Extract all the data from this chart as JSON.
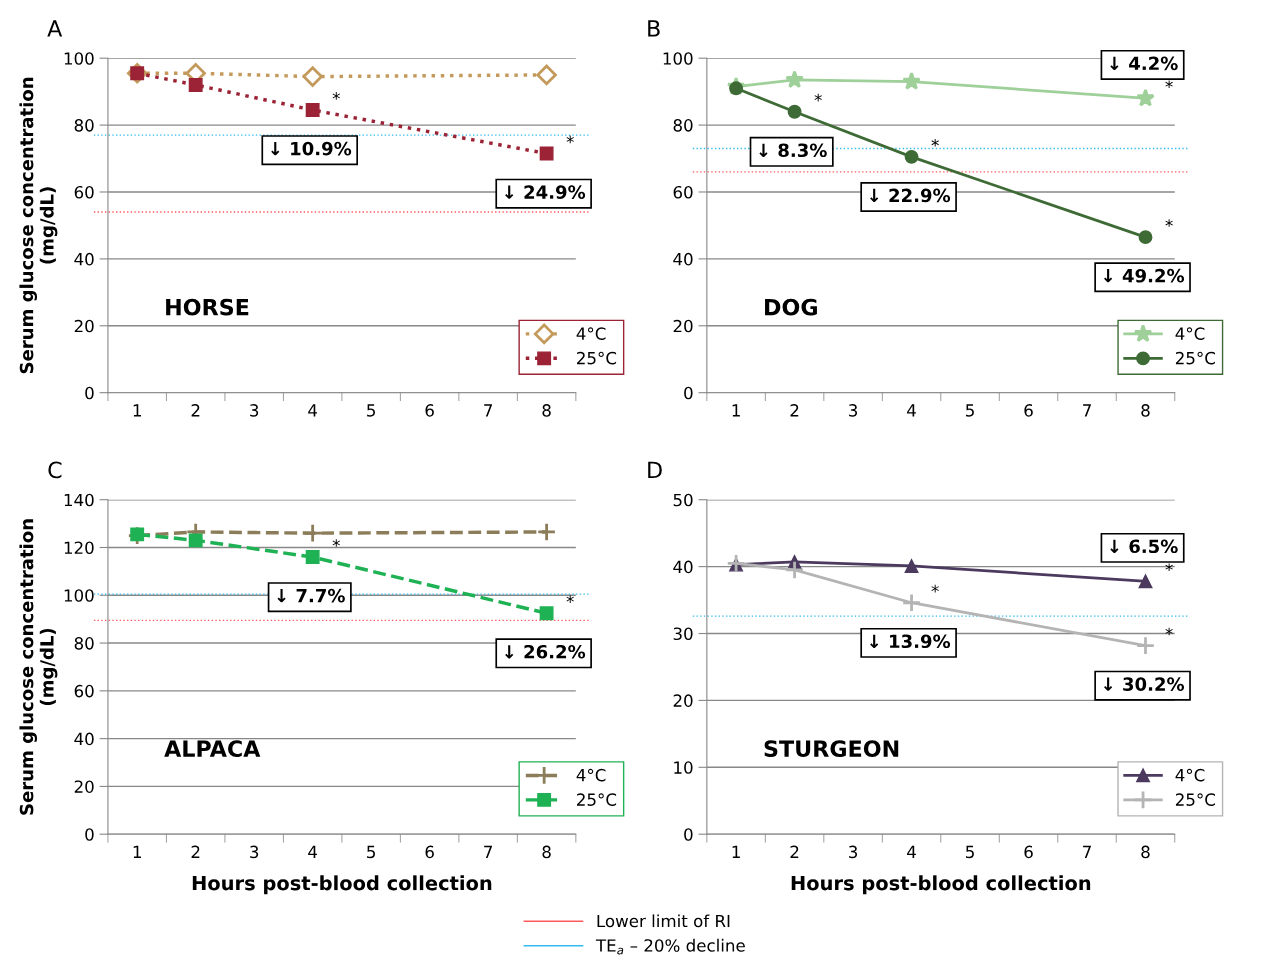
{
  "chart_data": [
    {
      "type": "line",
      "title": "A",
      "ylabel": "Serum glucose concentration\n(mg/dL)",
      "categories": [
        "1",
        "2",
        "3",
        "4",
        "5",
        "6",
        "7",
        "8"
      ],
      "ylim": [
        0,
        100
      ],
      "yticks": [
        0,
        20,
        40,
        60,
        80,
        100
      ],
      "grid": "y",
      "legend": "bottom right",
      "series": [
        {
          "name": "4°C",
          "color": "#c49a5c",
          "marker": "diamond",
          "line_style": "dotted",
          "values": [
            95.5,
            95.5,
            null,
            94.5,
            null,
            null,
            null,
            95
          ]
        },
        {
          "name": "25°C",
          "color": "#9b2335",
          "marker": "square",
          "line_style": "dotted",
          "values": [
            95.5,
            92,
            null,
            84.5,
            null,
            null,
            null,
            71.5
          ]
        }
      ],
      "ref_lines": [
        {
          "axis": "y",
          "value": 54,
          "label": "Lower limit of RI",
          "color": "#ff5a5a",
          "line_style": "dotted"
        },
        {
          "axis": "y",
          "value": 77,
          "label": "TE$_{a}$ – 20% decline",
          "color": "#33bbee",
          "line_style": "dotted"
        }
      ],
      "annotations": [
        "HORSE",
        {
          "text": "↓ 10.9%",
          "x": "4",
          "y": 84.5
        },
        {
          "text": "↓ 24.9%",
          "x": "8",
          "y": 71.5
        },
        {
          "text": "*",
          "x": "4",
          "y": 84.5
        },
        {
          "text": "*",
          "x": "8",
          "y": 71.5
        }
      ]
    },
    {
      "type": "line",
      "title": "B",
      "categories": [
        "1",
        "2",
        "3",
        "4",
        "5",
        "6",
        "7",
        "8"
      ],
      "ylim": [
        0,
        100
      ],
      "yticks": [
        0,
        20,
        40,
        60,
        80,
        100
      ],
      "grid": "y",
      "legend": "bottom right",
      "series": [
        {
          "name": "4°C",
          "color": "#9fd09a",
          "marker": "star",
          "line_style": "solid",
          "values": [
            91.5,
            93.5,
            null,
            93,
            null,
            null,
            null,
            88
          ]
        },
        {
          "name": "25°C",
          "color": "#3e6b35",
          "marker": "circle",
          "line_style": "solid",
          "values": [
            91,
            84,
            null,
            70.5,
            null,
            null,
            null,
            46.5
          ]
        }
      ],
      "ref_lines": [
        {
          "axis": "y",
          "value": 66,
          "color": "#ff5a5a",
          "line_style": "dotted"
        },
        {
          "axis": "y",
          "value": 73,
          "color": "#33bbee",
          "line_style": "dotted"
        }
      ],
      "annotations": [
        "DOG",
        {
          "text": "↓ 4.2%",
          "x": "8",
          "y": 88
        },
        {
          "text": "↓ 8.3%",
          "x": "2",
          "y": 84
        },
        {
          "text": "↓ 22.9%",
          "x": "4",
          "y": 70.5
        },
        {
          "text": "↓ 49.2%",
          "x": "8",
          "y": 46.5
        },
        {
          "text": "*",
          "x": "8",
          "y": 88
        },
        {
          "text": "*",
          "x": "2",
          "y": 84
        },
        {
          "text": "*",
          "x": "4",
          "y": 70.5
        },
        {
          "text": "*",
          "x": "8",
          "y": 46.5
        }
      ]
    },
    {
      "type": "line",
      "title": "C",
      "ylabel": "Serum glucose concentration\n(mg/dL)",
      "xlabel": "Hours post-blood collection",
      "categories": [
        "1",
        "2",
        "3",
        "4",
        "5",
        "6",
        "7",
        "8"
      ],
      "ylim": [
        0,
        140
      ],
      "yticks": [
        0,
        20,
        40,
        60,
        80,
        100,
        120,
        140
      ],
      "grid": "y",
      "legend": "bottom right",
      "series": [
        {
          "name": "4°C",
          "color": "#8c7d5a",
          "marker": "cross",
          "line_style": "dashed",
          "values": [
            125,
            126.5,
            null,
            126,
            null,
            null,
            null,
            126.5
          ]
        },
        {
          "name": "25°C",
          "color": "#1fb255",
          "marker": "square",
          "line_style": "dashed",
          "values": [
            125.5,
            123,
            null,
            116,
            null,
            null,
            null,
            92.5
          ]
        }
      ],
      "ref_lines": [
        {
          "axis": "y",
          "value": 89.5,
          "color": "#ff5a5a",
          "line_style": "dotted"
        },
        {
          "axis": "y",
          "value": 100.5,
          "color": "#33bbee",
          "line_style": "dotted"
        }
      ],
      "annotations": [
        "ALPACA",
        {
          "text": "↓ 7.7%",
          "x": "4",
          "y": 116
        },
        {
          "text": "↓ 26.2%",
          "x": "8",
          "y": 92.5
        },
        {
          "text": "*",
          "x": "4",
          "y": 116
        },
        {
          "text": "*",
          "x": "8",
          "y": 92.5
        }
      ]
    },
    {
      "type": "line",
      "title": "D",
      "xlabel": "Hours post-blood collection",
      "categories": [
        "1",
        "2",
        "3",
        "4",
        "5",
        "6",
        "7",
        "8"
      ],
      "ylim": [
        0,
        50
      ],
      "yticks": [
        0,
        10,
        20,
        30,
        40,
        50
      ],
      "grid": "y",
      "legend": "bottom right",
      "series": [
        {
          "name": "4°C",
          "color": "#4b3a5e",
          "marker": "triangle",
          "line_style": "solid",
          "values": [
            40.3,
            40.7,
            null,
            40.1,
            null,
            null,
            null,
            37.8
          ]
        },
        {
          "name": "25°C",
          "color": "#b4b4b4",
          "marker": "cross",
          "line_style": "solid",
          "values": [
            40.5,
            39.5,
            null,
            34.6,
            null,
            null,
            null,
            28.2
          ]
        }
      ],
      "ref_lines": [
        {
          "axis": "y",
          "value": 32.6,
          "color": "#33bbee",
          "line_style": "dotted"
        }
      ],
      "annotations": [
        "STURGEON",
        {
          "text": "↓ 6.5%",
          "x": "8",
          "y": 37.8
        },
        {
          "text": "↓ 13.9%",
          "x": "4",
          "y": 34.6
        },
        {
          "text": "↓ 30.2%",
          "x": "8",
          "y": 28.2
        },
        {
          "text": "*",
          "x": "4",
          "y": 34.6
        },
        {
          "text": "*",
          "x": "8",
          "y": 37.8
        },
        {
          "text": "*",
          "x": "8",
          "y": 28.2
        }
      ]
    }
  ]
}
